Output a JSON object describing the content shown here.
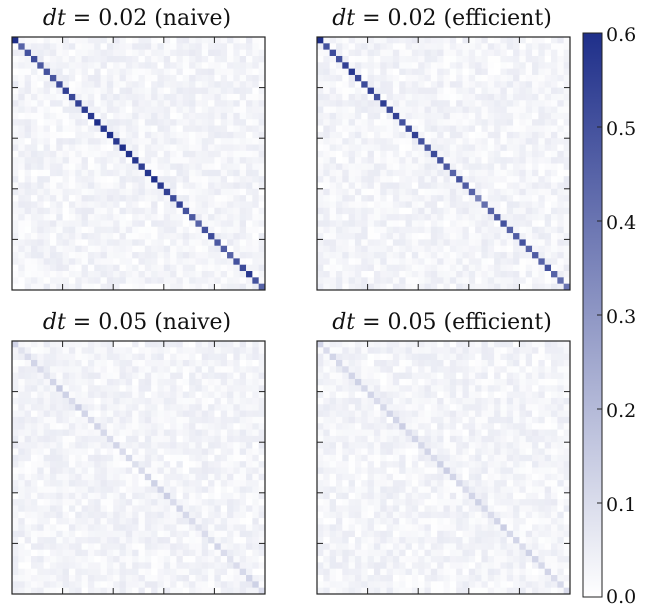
{
  "chart_data": [
    {
      "type": "heatmap",
      "title": "dt = 0.02 (naive)",
      "title_math": "dt",
      "title_rest": " = 0.02 (naive)",
      "n": 40,
      "diag_values": [
        0.62,
        0.45,
        0.5,
        0.52,
        0.48,
        0.5,
        0.49,
        0.52,
        0.55,
        0.53,
        0.55,
        0.56,
        0.57,
        0.6,
        0.58,
        0.6,
        0.57,
        0.62,
        0.6,
        0.58,
        0.56,
        0.58,
        0.6,
        0.57,
        0.55,
        0.52,
        0.55,
        0.5,
        0.48,
        0.45,
        0.5,
        0.52,
        0.48,
        0.47,
        0.45,
        0.5,
        0.52,
        0.58,
        0.5,
        0.45
      ],
      "offdiag_range": [
        0.0,
        0.06
      ]
    },
    {
      "type": "heatmap",
      "title": "dt = 0.02 (efficient)",
      "title_math": "dt",
      "title_rest": " = 0.02 (efficient)",
      "n": 40,
      "diag_values": [
        0.62,
        0.5,
        0.52,
        0.5,
        0.55,
        0.58,
        0.53,
        0.52,
        0.55,
        0.5,
        0.56,
        0.52,
        0.55,
        0.5,
        0.52,
        0.55,
        0.5,
        0.48,
        0.52,
        0.5,
        0.48,
        0.45,
        0.5,
        0.47,
        0.45,
        0.35,
        0.42,
        0.45,
        0.48,
        0.5,
        0.45,
        0.47,
        0.5,
        0.45,
        0.47,
        0.45,
        0.5,
        0.45,
        0.42,
        0.4
      ],
      "offdiag_range": [
        0.0,
        0.06
      ]
    },
    {
      "type": "heatmap",
      "title": "dt = 0.05 (naive)",
      "title_math": "dt",
      "title_rest": " = 0.05 (naive)",
      "n": 40,
      "diag_values": [
        0.12,
        0.08,
        0.1,
        0.12,
        0.1,
        0.08,
        0.12,
        0.15,
        0.13,
        0.1,
        0.14,
        0.12,
        0.1,
        0.12,
        0.11,
        0.1,
        0.12,
        0.1,
        0.11,
        0.09,
        0.1,
        0.12,
        0.13,
        0.12,
        0.14,
        0.1,
        0.12,
        0.11,
        0.1,
        0.08,
        0.1,
        0.09,
        0.12,
        0.1,
        0.08,
        0.1,
        0.11,
        0.12,
        0.13,
        0.1
      ],
      "offdiag_range": [
        0.0,
        0.06
      ]
    },
    {
      "type": "heatmap",
      "title": "dt = 0.05 (efficient)",
      "title_math": "dt",
      "title_rest": " = 0.05 (efficient)",
      "n": 40,
      "diag_values": [
        0.12,
        0.1,
        0.12,
        0.11,
        0.1,
        0.12,
        0.13,
        0.11,
        0.12,
        0.1,
        0.11,
        0.12,
        0.12,
        0.14,
        0.1,
        0.12,
        0.11,
        0.12,
        0.1,
        0.13,
        0.14,
        0.12,
        0.11,
        0.1,
        0.12,
        0.13,
        0.11,
        0.1,
        0.12,
        0.14,
        0.11,
        0.12,
        0.1,
        0.13,
        0.12,
        0.11,
        0.12,
        0.1,
        0.11,
        0.1
      ],
      "offdiag_range": [
        0.0,
        0.06
      ]
    }
  ],
  "colorbar": {
    "min": 0.0,
    "max": 0.6,
    "ticks": [
      "0.0",
      "0.1",
      "0.2",
      "0.3",
      "0.4",
      "0.5",
      "0.6"
    ],
    "color_low": "#ffffff",
    "color_high": "#1f2f8a"
  }
}
